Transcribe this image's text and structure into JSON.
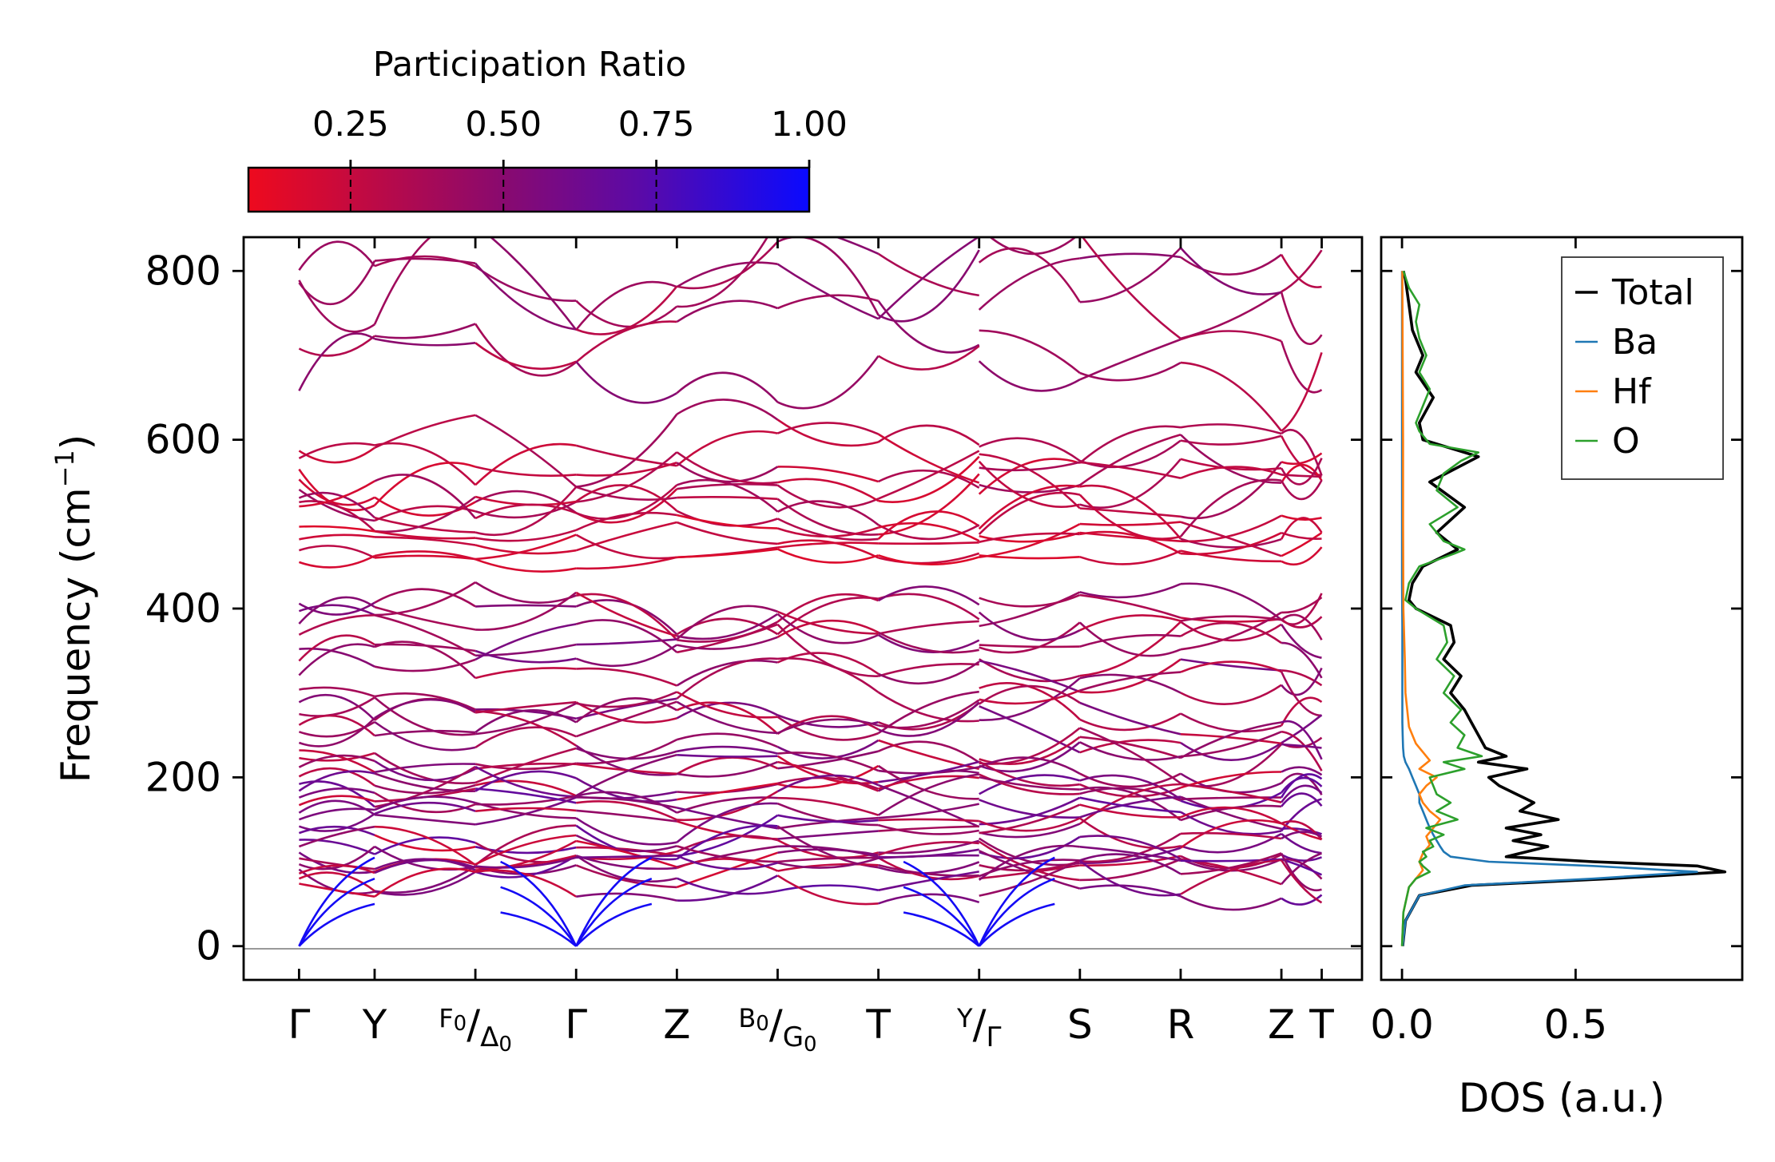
{
  "colorbar": {
    "title": "Participation Ratio",
    "ticks": [
      "0.25",
      "0.50",
      "0.75",
      "1.00"
    ],
    "tick_values": [
      0.25,
      0.5,
      0.75,
      1.0
    ],
    "range": [
      0.083,
      1.0
    ],
    "cmap_low": "#ee0a1e",
    "cmap_mid": "#8a0a82",
    "cmap_high": "#0a0aff"
  },
  "chart_data": [
    {
      "type": "line",
      "panel": "phonon-dispersion",
      "ylabel": "Frequency (cm",
      "ylabel_sup": "−1",
      "ylabel_tail": ")",
      "ylim": [
        -40,
        840
      ],
      "yticks": [
        0,
        200,
        400,
        600,
        800
      ],
      "ytick_labels": [
        "0",
        "200",
        "400",
        "600",
        "800"
      ],
      "xlim": [
        -0.55,
        10.55
      ],
      "kpoint_positions": [
        0,
        0.75,
        1.75,
        2.75,
        3.75,
        4.75,
        5.75,
        6.75,
        7.75,
        8.75,
        9.75,
        10.15
      ],
      "kpoint_labels": [
        {
          "main": "Γ"
        },
        {
          "main": "Y"
        },
        {
          "pre": "F",
          "pre_sub": "0",
          "slash": "/",
          "main": "Δ",
          "sub": "0"
        },
        {
          "main": "Γ"
        },
        {
          "main": "Z"
        },
        {
          "pre": "B",
          "pre_sub": "0",
          "slash": "/",
          "main": "G",
          "sub": "0"
        },
        {
          "main": "T"
        },
        {
          "pre": "Y",
          "slash": "/",
          "main": "Γ"
        },
        {
          "main": "S"
        },
        {
          "main": "R"
        },
        {
          "main": "Z"
        },
        {
          "main": "T"
        }
      ],
      "segments": [
        [
          0,
          0.75
        ],
        [
          0.75,
          1.75
        ],
        [
          1.75,
          2.75
        ],
        [
          2.75,
          3.75
        ],
        [
          3.75,
          4.75
        ],
        [
          4.75,
          5.75
        ],
        [
          5.75,
          6.75
        ],
        [
          6.75,
          7.75
        ],
        [
          7.75,
          8.75
        ],
        [
          8.75,
          9.75
        ],
        [
          9.75,
          10.15
        ]
      ],
      "high_band_groups": {
        "top": [
          801,
          789,
          786,
          708,
          658
        ],
        "upper_mid": [
          587,
          578,
          565,
          553,
          541,
          531,
          526,
          521
        ],
        "lower_mid": [
          497,
          482,
          469,
          455
        ]
      },
      "mid_band_group": [
        406,
        397,
        382,
        369,
        352,
        338,
        321,
        304,
        289,
        275,
        262,
        254,
        241,
        232,
        223,
        212
      ],
      "low_band_group": [
        201,
        192,
        184,
        176,
        167,
        158,
        150,
        142,
        134,
        126,
        118,
        111,
        104,
        97,
        91,
        86,
        80,
        74
      ],
      "acoustic_gamma_x": [
        0,
        2.75,
        6.75
      ]
    },
    {
      "type": "line",
      "panel": "density-of-states",
      "xlabel": "DOS (a.u.)",
      "xlim": [
        -0.06,
        0.98
      ],
      "xticks": [
        0.0,
        0.5
      ],
      "xtick_labels": [
        "0.0",
        "0.5"
      ],
      "ylim": [
        -40,
        840
      ],
      "legend_position": "top-right",
      "series": [
        {
          "name": "Total",
          "color": "#000000",
          "freq": [
            0,
            30,
            60,
            72,
            80,
            88,
            95,
            100,
            106,
            112,
            118,
            125,
            132,
            140,
            150,
            160,
            170,
            180,
            190,
            200,
            210,
            218,
            225,
            235,
            250,
            265,
            280,
            300,
            320,
            340,
            360,
            380,
            400,
            410,
            430,
            450,
            470,
            490,
            520,
            550,
            580,
            600,
            620,
            650,
            680,
            700,
            730,
            760,
            790,
            800
          ],
          "value": [
            0.002,
            0.01,
            0.05,
            0.2,
            0.6,
            0.93,
            0.85,
            0.55,
            0.3,
            0.36,
            0.42,
            0.32,
            0.4,
            0.3,
            0.45,
            0.34,
            0.38,
            0.33,
            0.28,
            0.25,
            0.36,
            0.22,
            0.3,
            0.24,
            0.22,
            0.2,
            0.18,
            0.14,
            0.17,
            0.12,
            0.15,
            0.14,
            0.04,
            0.02,
            0.03,
            0.06,
            0.16,
            0.1,
            0.18,
            0.08,
            0.22,
            0.06,
            0.05,
            0.09,
            0.04,
            0.06,
            0.03,
            0.02,
            0.01,
            0.004
          ]
        },
        {
          "name": "Ba",
          "color": "#1f77b4",
          "freq": [
            0,
            30,
            60,
            72,
            80,
            88,
            95,
            100,
            106,
            112,
            118,
            125,
            132,
            140,
            150,
            160,
            170,
            180,
            190,
            200,
            210,
            218,
            225,
            235,
            250,
            265,
            280,
            300,
            320,
            340,
            360,
            380,
            400,
            430,
            480,
            550,
            650,
            800
          ],
          "value": [
            0.002,
            0.01,
            0.05,
            0.18,
            0.55,
            0.85,
            0.55,
            0.25,
            0.14,
            0.12,
            0.11,
            0.1,
            0.09,
            0.08,
            0.07,
            0.06,
            0.05,
            0.05,
            0.04,
            0.03,
            0.02,
            0.01,
            0.005,
            0.003,
            0.002,
            0.001,
            0.001,
            0.001,
            0.001,
            0.001,
            0.001,
            0.001,
            0.0005,
            0.0,
            0.0,
            0.0,
            0.0,
            0.0
          ]
        },
        {
          "name": "Hf",
          "color": "#ff7f0e",
          "freq": [
            0,
            40,
            70,
            80,
            90,
            100,
            110,
            120,
            130,
            140,
            150,
            160,
            170,
            180,
            190,
            200,
            210,
            220,
            230,
            240,
            250,
            260,
            280,
            300,
            340,
            400,
            500,
            600,
            700,
            800
          ],
          "value": [
            0.0,
            0.004,
            0.02,
            0.04,
            0.06,
            0.05,
            0.06,
            0.08,
            0.07,
            0.09,
            0.11,
            0.08,
            0.06,
            0.05,
            0.07,
            0.1,
            0.05,
            0.08,
            0.06,
            0.04,
            0.03,
            0.02,
            0.015,
            0.01,
            0.008,
            0.004,
            0.003,
            0.003,
            0.002,
            0.001
          ]
        },
        {
          "name": "O",
          "color": "#2ca02c",
          "freq": [
            0,
            40,
            70,
            80,
            88,
            95,
            100,
            106,
            112,
            118,
            125,
            132,
            140,
            150,
            160,
            170,
            180,
            190,
            200,
            210,
            218,
            225,
            235,
            250,
            265,
            280,
            300,
            320,
            340,
            360,
            380,
            400,
            410,
            430,
            450,
            465,
            470,
            480,
            500,
            520,
            540,
            560,
            575,
            585,
            595,
            610,
            620,
            640,
            660,
            680,
            700,
            720,
            740,
            760,
            780,
            800
          ],
          "value": [
            0.0,
            0.004,
            0.02,
            0.04,
            0.08,
            0.06,
            0.05,
            0.07,
            0.06,
            0.09,
            0.08,
            0.12,
            0.07,
            0.16,
            0.1,
            0.14,
            0.1,
            0.09,
            0.08,
            0.18,
            0.12,
            0.23,
            0.16,
            0.18,
            0.14,
            0.17,
            0.12,
            0.15,
            0.1,
            0.13,
            0.12,
            0.04,
            0.01,
            0.02,
            0.05,
            0.15,
            0.18,
            0.12,
            0.08,
            0.16,
            0.1,
            0.12,
            0.17,
            0.22,
            0.08,
            0.05,
            0.04,
            0.06,
            0.08,
            0.05,
            0.07,
            0.05,
            0.04,
            0.05,
            0.02,
            0.004
          ]
        }
      ]
    }
  ]
}
